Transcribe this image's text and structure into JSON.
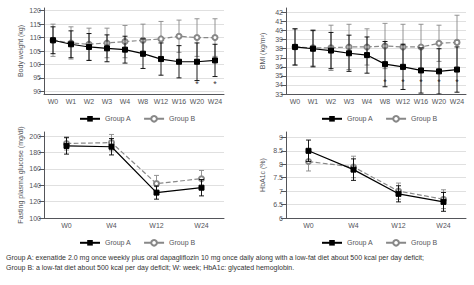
{
  "chart_data": [
    {
      "type": "line",
      "categories": [
        "W0",
        "W1",
        "W2",
        "W3",
        "W4",
        "W8",
        "W12",
        "W16",
        "W20",
        "W24"
      ],
      "series": [
        {
          "name": "Group A",
          "color": "#000000",
          "marker": "square",
          "line_style": "solid",
          "values": [
            109,
            107.5,
            106.5,
            106,
            105.5,
            104,
            102,
            101,
            101,
            101.5
          ],
          "errors": [
            5,
            5,
            5,
            5,
            5,
            5.5,
            6,
            6,
            7,
            6
          ]
        },
        {
          "name": "Group B",
          "color": "#888888",
          "marker": "open_circle",
          "line_style": "dashed",
          "values": [
            109,
            108,
            107.5,
            108,
            108.5,
            109,
            109.5,
            110.5,
            110,
            110
          ],
          "errors": [
            6,
            6,
            6,
            5.5,
            6,
            6,
            6.5,
            6,
            7,
            7
          ]
        }
      ],
      "ylabel": "Body weight (kg)",
      "ylim": [
        89,
        121
      ],
      "yticks": [
        90,
        95,
        100,
        105,
        110,
        115,
        120
      ],
      "annotations": [
        {
          "text": "*",
          "x": "W20",
          "y": 91
        },
        {
          "text": "*",
          "x": "W24",
          "y": 91
        }
      ],
      "grid": true,
      "legend": "bottom"
    },
    {
      "type": "line",
      "categories": [
        "W0",
        "W1",
        "W2",
        "W3",
        "W4",
        "W8",
        "W12",
        "W16",
        "W20",
        "W24"
      ],
      "series": [
        {
          "name": "Group A",
          "color": "#000000",
          "marker": "square",
          "line_style": "solid",
          "values": [
            38.2,
            38.0,
            37.8,
            37.5,
            37.3,
            36.3,
            36.0,
            35.6,
            35.5,
            35.7
          ],
          "errors": [
            2,
            2,
            2,
            2,
            2,
            2.5,
            2.5,
            2.5,
            2.5,
            2.5
          ]
        },
        {
          "name": "Group B",
          "color": "#888888",
          "marker": "open_circle",
          "line_style": "dashed",
          "values": [
            38.2,
            38.1,
            38.1,
            38.2,
            38.2,
            38.3,
            38.2,
            38.2,
            38.6,
            38.7
          ],
          "errors": [
            2,
            2,
            2.5,
            2.5,
            2,
            2.5,
            2.5,
            2.5,
            2,
            3
          ]
        }
      ],
      "ylabel": "BMI (kg/m²)",
      "ylim": [
        33,
        42.5
      ],
      "yticks": [
        33,
        34,
        35,
        36,
        37,
        38,
        39,
        40,
        41,
        42
      ],
      "annotations": [
        {
          "text": "*",
          "x": "W8",
          "y": 33.8
        },
        {
          "text": "*",
          "x": "W12",
          "y": 33.8
        },
        {
          "text": "*",
          "x": "W16",
          "y": 33.8
        },
        {
          "text": "*",
          "x": "W20",
          "y": 33.8
        },
        {
          "text": "*",
          "x": "W24",
          "y": 33.8
        }
      ],
      "grid": true,
      "legend": "bottom"
    },
    {
      "type": "line",
      "categories": [
        "W0",
        "W4",
        "W12",
        "W24"
      ],
      "series": [
        {
          "name": "Group A",
          "color": "#000000",
          "marker": "square",
          "line_style": "solid",
          "values": [
            188,
            187,
            131,
            137
          ],
          "errors": [
            10,
            10,
            8,
            10
          ]
        },
        {
          "name": "Group B",
          "color": "#888888",
          "marker": "open_circle",
          "line_style": "dashed",
          "values": [
            191,
            192,
            142,
            148
          ],
          "errors": [
            8,
            10,
            10,
            10
          ]
        }
      ],
      "ylabel": "Fasting plasma glucose (mg/dl)",
      "ylim": [
        100,
        205
      ],
      "yticks": [
        100,
        120,
        140,
        160,
        180,
        200
      ],
      "grid": true,
      "legend": "bottom"
    },
    {
      "type": "line",
      "categories": [
        "W0",
        "W4",
        "W12",
        "W24"
      ],
      "series": [
        {
          "name": "Group A",
          "color": "#000000",
          "marker": "square",
          "line_style": "solid",
          "values": [
            8.5,
            7.8,
            6.9,
            6.6
          ],
          "errors": [
            0.4,
            0.4,
            0.3,
            0.35
          ]
        },
        {
          "name": "Group B",
          "color": "#888888",
          "marker": "open_circle",
          "line_style": "dashed",
          "values": [
            8.1,
            7.9,
            7.0,
            6.7
          ],
          "errors": [
            0.35,
            0.4,
            0.3,
            0.35
          ]
        }
      ],
      "ylabel": "HbA1c (%)",
      "ylim": [
        6,
        9.2
      ],
      "yticks": [
        6,
        6.5,
        7,
        7.5,
        8,
        8.5,
        9
      ],
      "grid": true,
      "legend": "bottom"
    }
  ],
  "caption": [
    "Group A: exenatide 2.0 mg once weekly plus oral dapagliflozin 10 mg once daily along with a low-fat diet about 500 kcal per day deficit;",
    "Group B: a low-fat diet about 500 kcal per day deficit; W: week; HbA1c: glycated hemoglobin."
  ]
}
